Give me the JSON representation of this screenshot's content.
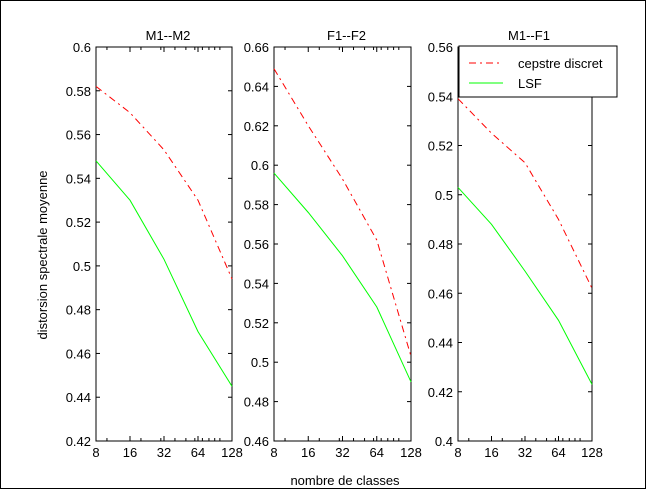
{
  "figure": {
    "xlabel": "nombre de classes",
    "ylabel": "distorsion spectrale moyenne"
  },
  "legend": {
    "placement": "top-right of third panel",
    "entries": [
      {
        "label": "cepstre discret",
        "color": "#ff0000",
        "style": "dash-dot"
      },
      {
        "label": "LSF",
        "color": "#00ff00",
        "style": "solid"
      }
    ]
  },
  "chart_data": [
    {
      "type": "line",
      "title": "M1--M2",
      "xscale": "log2",
      "xticks": [
        "8",
        "16",
        "32",
        "64",
        "128"
      ],
      "xlim": [
        8,
        128
      ],
      "ylim": [
        0.42,
        0.6
      ],
      "yticks": [
        "0.42",
        "0.44",
        "0.46",
        "0.48",
        "0.5",
        "0.52",
        "0.54",
        "0.56",
        "0.58",
        "0.6"
      ],
      "grid": false,
      "series": [
        {
          "name": "cepstre discret",
          "color": "#ff0000",
          "style": "dash-dot",
          "x": [
            8,
            16,
            32,
            64,
            128
          ],
          "y": [
            0.582,
            0.57,
            0.553,
            0.53,
            0.494
          ]
        },
        {
          "name": "LSF",
          "color": "#00ff00",
          "style": "solid",
          "x": [
            8,
            16,
            32,
            64,
            128
          ],
          "y": [
            0.548,
            0.53,
            0.503,
            0.47,
            0.445
          ]
        }
      ]
    },
    {
      "type": "line",
      "title": "F1--F2",
      "xscale": "log2",
      "xticks": [
        "8",
        "16",
        "32",
        "64",
        "128"
      ],
      "xlim": [
        8,
        128
      ],
      "ylim": [
        0.46,
        0.66
      ],
      "yticks": [
        "0.46",
        "0.48",
        "0.5",
        "0.52",
        "0.54",
        "0.56",
        "0.58",
        "0.6",
        "0.62",
        "0.64",
        "0.66"
      ],
      "grid": false,
      "series": [
        {
          "name": "cepstre discret",
          "color": "#ff0000",
          "style": "dash-dot",
          "x": [
            8,
            16,
            32,
            64,
            128
          ],
          "y": [
            0.649,
            0.62,
            0.593,
            0.562,
            0.503
          ]
        },
        {
          "name": "LSF",
          "color": "#00ff00",
          "style": "solid",
          "x": [
            8,
            16,
            32,
            64,
            128
          ],
          "y": [
            0.596,
            0.576,
            0.554,
            0.528,
            0.49
          ]
        }
      ]
    },
    {
      "type": "line",
      "title": "M1--F1",
      "xscale": "log2",
      "xticks": [
        "8",
        "16",
        "32",
        "64",
        "128"
      ],
      "xlim": [
        8,
        128
      ],
      "ylim": [
        0.4,
        0.56
      ],
      "yticks": [
        "0.4",
        "0.42",
        "0.44",
        "0.46",
        "0.48",
        "0.5",
        "0.52",
        "0.54",
        "0.56"
      ],
      "grid": false,
      "series": [
        {
          "name": "cepstre discret",
          "color": "#ff0000",
          "style": "dash-dot",
          "x": [
            8,
            16,
            32,
            64,
            128
          ],
          "y": [
            0.539,
            0.525,
            0.513,
            0.49,
            0.462
          ]
        },
        {
          "name": "LSF",
          "color": "#00ff00",
          "style": "solid",
          "x": [
            8,
            16,
            32,
            64,
            128
          ],
          "y": [
            0.503,
            0.488,
            0.469,
            0.449,
            0.423
          ]
        }
      ]
    }
  ]
}
